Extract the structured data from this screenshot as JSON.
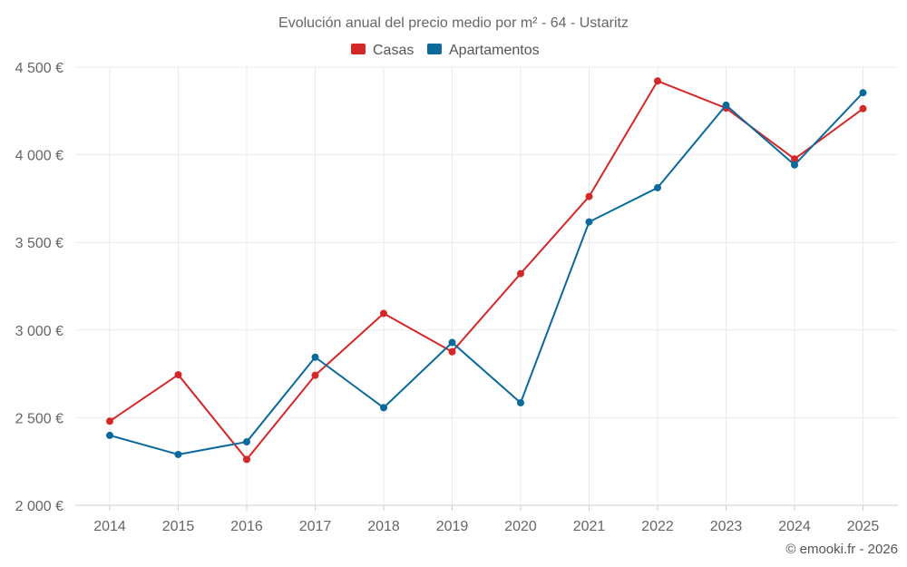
{
  "chart_data": {
    "type": "line",
    "title": "Evolución anual del precio medio por m² - 64 - Ustaritz",
    "categories": [
      "2014",
      "2015",
      "2016",
      "2017",
      "2018",
      "2019",
      "2020",
      "2021",
      "2022",
      "2023",
      "2024",
      "2025"
    ],
    "series": [
      {
        "name": "Casas",
        "color": "#d62728",
        "values": [
          2480,
          2745,
          2262,
          2742,
          3095,
          2876,
          3322,
          3762,
          4421,
          4266,
          3976,
          4263
        ]
      },
      {
        "name": "Apartamentos",
        "color": "#0b6a9b",
        "values": [
          2399,
          2290,
          2362,
          2845,
          2557,
          2929,
          2585,
          3617,
          3812,
          4283,
          3942,
          4354
        ]
      }
    ],
    "ylim": [
      2000,
      4500
    ],
    "yticks": [
      2000,
      2500,
      3000,
      3500,
      4000,
      4500
    ],
    "ytick_labels": [
      "2 000 €",
      "2 500 €",
      "3 000 €",
      "3 500 €",
      "4 000 €",
      "4 500 €"
    ],
    "xlabel": "",
    "ylabel": "",
    "grid": true,
    "legend_position": "top-center"
  },
  "credit": "© emooki.fr - 2026"
}
